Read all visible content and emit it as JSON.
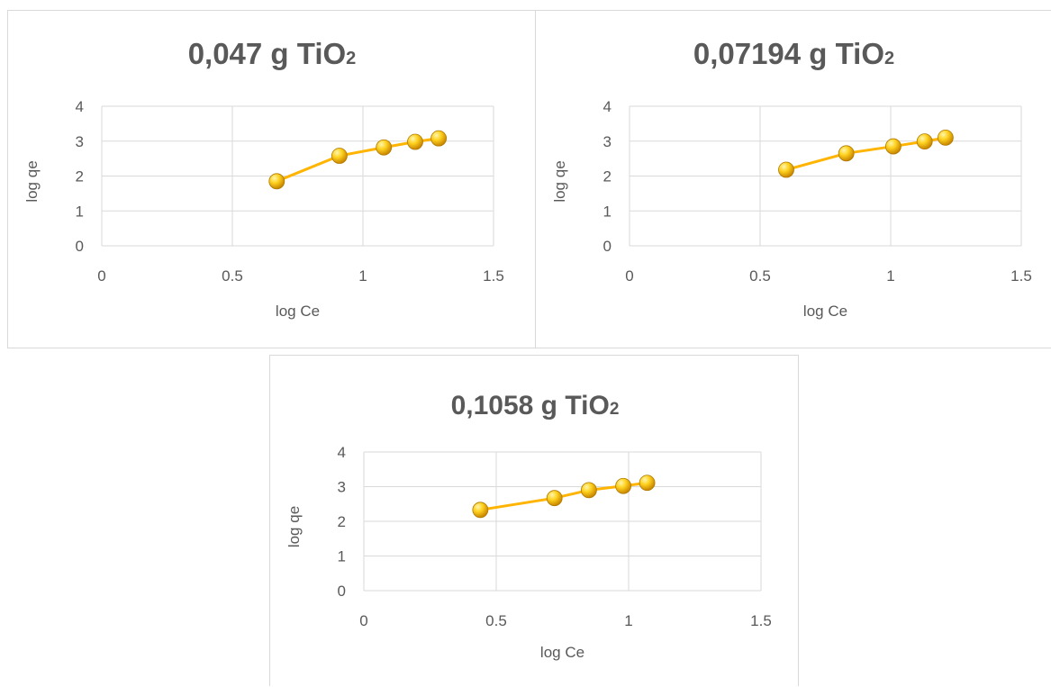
{
  "chart_data": [
    {
      "type": "line",
      "title": "0,047 g TiO",
      "title_subscript": "2",
      "xlabel": "log Ce",
      "ylabel": "log qe",
      "xlim": [
        0,
        1.5
      ],
      "ylim": [
        0,
        4
      ],
      "x_ticks": [
        "0",
        "0.5",
        "1",
        "1.5"
      ],
      "y_ticks": [
        "0",
        "1",
        "2",
        "3",
        "4"
      ],
      "grid": true,
      "series": [
        {
          "x": [
            0.67,
            0.91,
            1.08,
            1.2,
            1.29
          ],
          "y": [
            1.85,
            2.58,
            2.82,
            2.98,
            3.08
          ]
        }
      ],
      "color": "#FFB400"
    },
    {
      "type": "line",
      "title": "0,07194 g  TiO",
      "title_subscript": "2",
      "xlabel": "log Ce",
      "ylabel": "log qe",
      "xlim": [
        0,
        1.5
      ],
      "ylim": [
        0,
        4
      ],
      "x_ticks": [
        "0",
        "0.5",
        "1",
        "1.5"
      ],
      "y_ticks": [
        "0",
        "1",
        "2",
        "3",
        "4"
      ],
      "grid": true,
      "series": [
        {
          "x": [
            0.6,
            0.83,
            1.01,
            1.13,
            1.21
          ],
          "y": [
            2.18,
            2.65,
            2.85,
            2.99,
            3.1
          ]
        }
      ],
      "color": "#FFB400"
    },
    {
      "type": "line",
      "title": "0,1058 g TiO",
      "title_subscript": "2",
      "xlabel": "log Ce",
      "ylabel": "log qe",
      "xlim": [
        0,
        1.5
      ],
      "ylim": [
        0,
        4
      ],
      "x_ticks": [
        "0",
        "0.5",
        "1",
        "1.5"
      ],
      "y_ticks": [
        "0",
        "1",
        "2",
        "3",
        "4"
      ],
      "grid": true,
      "series": [
        {
          "x": [
            0.44,
            0.72,
            0.85,
            0.98,
            1.07
          ],
          "y": [
            2.33,
            2.67,
            2.9,
            3.02,
            3.11
          ]
        }
      ],
      "color": "#FFB400"
    }
  ]
}
